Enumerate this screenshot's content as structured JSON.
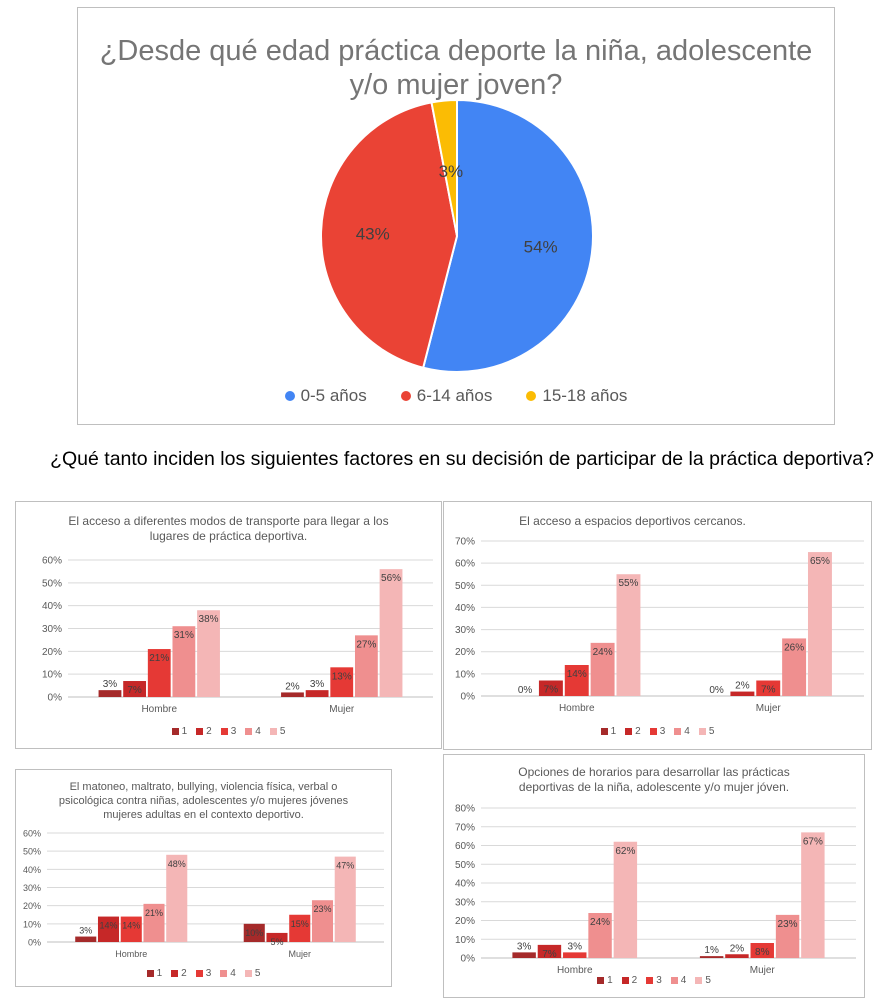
{
  "pie_chart": {
    "title": "¿Desde qué edad práctica deporte la niña, adolescente y/o mujer joven?",
    "legend": [
      "0-5 años",
      "6-14 años",
      "15-18 años"
    ],
    "colors": [
      "#4285f4",
      "#ea4335",
      "#fbbc04"
    ]
  },
  "section_heading": "¿Qué tanto inciden los siguientes factores en su decisión de participar de la práctica deportiva?",
  "bar_legend": [
    "1",
    "2",
    "3",
    "4",
    "5"
  ],
  "bar_colors": [
    "#a52a2a",
    "#c62828",
    "#e53935",
    "#ef8f8f",
    "#f4b6b6"
  ],
  "chart_titles": {
    "c1": "El acceso a diferentes modos de transporte para llegar a los lugares de práctica deportiva.",
    "c2": "El acceso a espacios deportivos cercanos.",
    "c3": "El matoneo, maltrato, bullying,  violencia física, verbal o psicológica contra niñas, adolescentes y/o mujeres jóvenes mujeres adultas en el contexto deportivo.",
    "c4": "Opciones de horarios para desarrollar las prácticas deportivas de la niña, adolescente y/o mujer jóven."
  },
  "chart_data": [
    {
      "type": "pie",
      "title": "¿Desde qué edad práctica deporte la niña, adolescente y/o mujer joven?",
      "labels": [
        "0-5 años",
        "6-14 años",
        "15-18 años"
      ],
      "values": [
        54,
        43,
        3
      ],
      "data_labels": [
        "54%",
        "43%",
        "3%"
      ]
    },
    {
      "type": "bar",
      "title": "El acceso a diferentes modos de transporte para llegar a los lugares de práctica deportiva.",
      "categories": [
        "Hombre",
        "Mujer"
      ],
      "series": [
        {
          "name": "1",
          "values": [
            3,
            2
          ]
        },
        {
          "name": "2",
          "values": [
            7,
            3
          ]
        },
        {
          "name": "3",
          "values": [
            21,
            13
          ]
        },
        {
          "name": "4",
          "values": [
            31,
            27
          ]
        },
        {
          "name": "5",
          "values": [
            38,
            56
          ]
        }
      ],
      "ylim": [
        0,
        60
      ],
      "yticks": [
        "0%",
        "10%",
        "20%",
        "30%",
        "40%",
        "50%",
        "60%"
      ],
      "grid": true,
      "legend": "bottom"
    },
    {
      "type": "bar",
      "title": "El acceso a espacios deportivos cercanos.",
      "categories": [
        "Hombre",
        "Mujer"
      ],
      "series": [
        {
          "name": "1",
          "values": [
            0,
            0
          ]
        },
        {
          "name": "2",
          "values": [
            7,
            2
          ]
        },
        {
          "name": "3",
          "values": [
            14,
            7
          ]
        },
        {
          "name": "4",
          "values": [
            24,
            26
          ]
        },
        {
          "name": "5",
          "values": [
            55,
            65
          ]
        }
      ],
      "ylim": [
        0,
        70
      ],
      "yticks": [
        "0%",
        "10%",
        "20%",
        "30%",
        "40%",
        "50%",
        "60%",
        "70%"
      ],
      "grid": true,
      "legend": "bottom"
    },
    {
      "type": "bar",
      "title": "El matoneo, maltrato, bullying,  violencia física, verbal o psicológica contra niñas, adolescentes y/o mujeres jóvenes mujeres adultas en el contexto deportivo.",
      "categories": [
        "Hombre",
        "Mujer"
      ],
      "series": [
        {
          "name": "1",
          "values": [
            3,
            10
          ]
        },
        {
          "name": "2",
          "values": [
            14,
            5
          ]
        },
        {
          "name": "3",
          "values": [
            14,
            15
          ]
        },
        {
          "name": "4",
          "values": [
            21,
            23
          ]
        },
        {
          "name": "5",
          "values": [
            48,
            47
          ]
        }
      ],
      "ylim": [
        0,
        60
      ],
      "yticks": [
        "0%",
        "10%",
        "20%",
        "30%",
        "40%",
        "50%",
        "60%"
      ],
      "grid": true,
      "legend": "bottom"
    },
    {
      "type": "bar",
      "title": "Opciones de horarios para desarrollar las prácticas deportivas de la niña, adolescente y/o mujer jóven.",
      "categories": [
        "Hombre",
        "Mujer"
      ],
      "series": [
        {
          "name": "1",
          "values": [
            3,
            1
          ]
        },
        {
          "name": "2",
          "values": [
            7,
            2
          ]
        },
        {
          "name": "3",
          "values": [
            3,
            8
          ]
        },
        {
          "name": "4",
          "values": [
            24,
            23
          ]
        },
        {
          "name": "5",
          "values": [
            62,
            67
          ]
        }
      ],
      "ylim": [
        0,
        80
      ],
      "yticks": [
        "0%",
        "10%",
        "20%",
        "30%",
        "40%",
        "50%",
        "60%",
        "70%",
        "80%"
      ],
      "grid": true,
      "legend": "bottom"
    }
  ]
}
